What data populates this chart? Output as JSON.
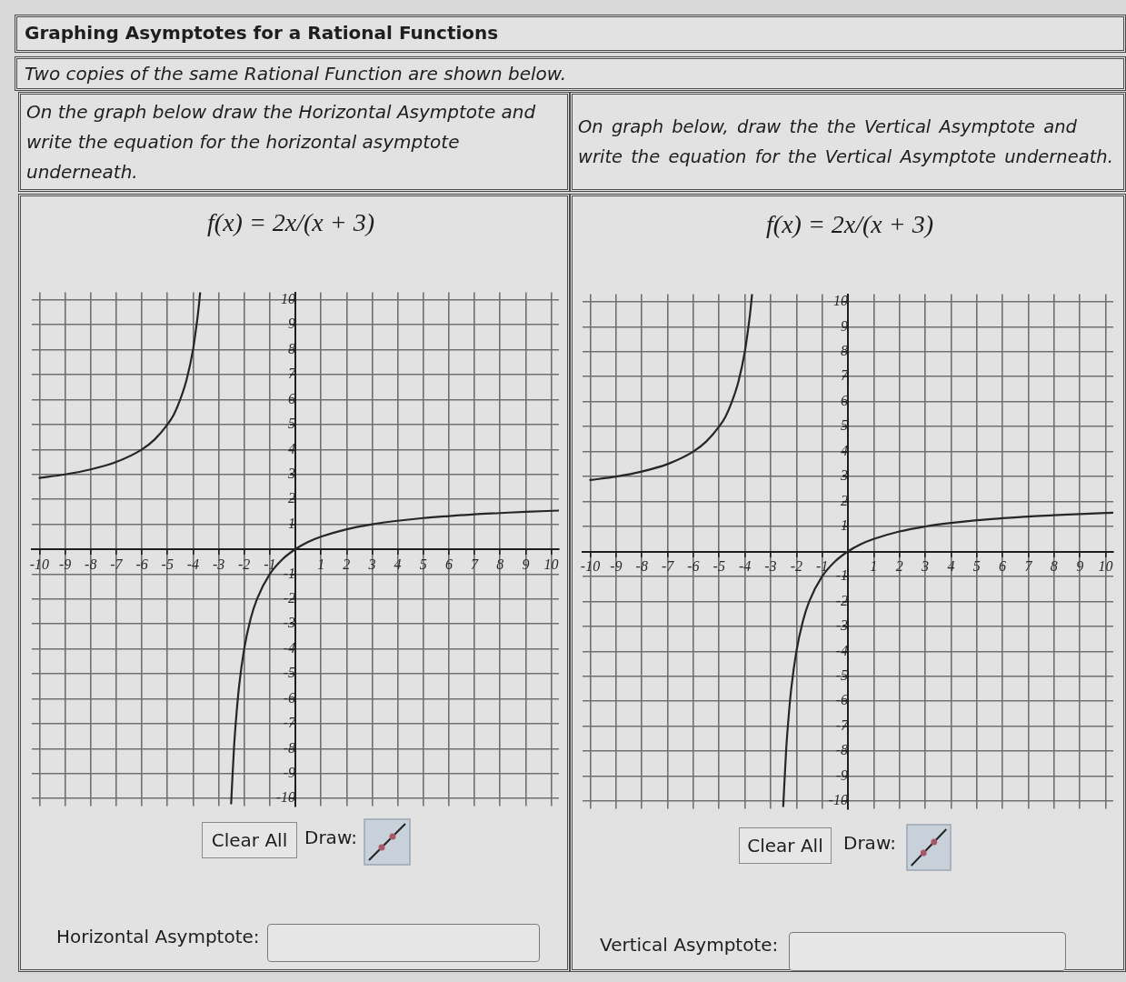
{
  "chart_data": [
    {
      "type": "other",
      "title": "Graphing Asymptotes for a Rational Functions",
      "subtitle": "Two copies of the same Rational Function are shown below."
    },
    {
      "type": "line",
      "title": "On the graph below draw the Horizontal Asymptote and write the equation for the horizontal asymptote underneath.",
      "subtitle": "f(x) = 2x/(x + 3)",
      "series": [
        {
          "color": "#262626",
          "x": [
            -10,
            -9,
            -8,
            -7,
            -6,
            -5.5,
            -5,
            -4.75,
            -4.5,
            -4.25,
            -4,
            -3.9,
            -3.8,
            -3.72
          ],
          "values": [
            2.86,
            3,
            3.2,
            3.5,
            4,
            4.4,
            5,
            5.4,
            6,
            6.8,
            8,
            8.7,
            9.5,
            10.3
          ]
        },
        {
          "color": "#262626",
          "x": [
            -2.51,
            -2.4,
            -2.3,
            -2.2,
            -2,
            -1.75,
            -1.5,
            -1,
            -0.5,
            0,
            0.5,
            1,
            2,
            3,
            4,
            5,
            6,
            7,
            8,
            9,
            10.3
          ],
          "values": [
            -10.2,
            -8,
            -6.6,
            -5.5,
            -4,
            -2.8,
            -2,
            -1,
            -0.4,
            0,
            0.29,
            0.5,
            0.8,
            1,
            1.14,
            1.25,
            1.33,
            1.4,
            1.45,
            1.5,
            1.55
          ]
        }
      ],
      "xlim": [
        -10.3,
        10.3
      ],
      "ylim": [
        -10.3,
        10.3
      ],
      "xticks": [
        -10,
        -9,
        -8,
        -7,
        -6,
        -5,
        -4,
        -3,
        -2,
        -1,
        {
          "value": 0,
          "label": null
        },
        1,
        2,
        3,
        4,
        5,
        6,
        7,
        8,
        9,
        10
      ],
      "yticks": [
        -10,
        -9,
        -8,
        -7,
        -6,
        -5,
        -4,
        -3,
        -2,
        -1,
        {
          "value": 0,
          "label": null
        },
        1,
        2,
        3,
        4,
        5,
        6,
        7,
        8,
        9,
        10
      ],
      "grid": true,
      "marker": "none",
      "line_style": "solid",
      "annotations": [
        "Clear All",
        "Draw:",
        "Horizontal Asymptote:"
      ]
    },
    {
      "type": "line",
      "title": "On graph below, draw the the Vertical Asymptote and write the equation for the Vertical Asymptote underneath.",
      "subtitle": "f(x) = 2x/(x + 3)",
      "series": [
        {
          "color": "#262626",
          "x": [
            -10,
            -9,
            -8,
            -7,
            -6,
            -5.5,
            -5,
            -4.75,
            -4.5,
            -4.25,
            -4,
            -3.9,
            -3.8,
            -3.72
          ],
          "values": [
            2.86,
            3,
            3.2,
            3.5,
            4,
            4.4,
            5,
            5.4,
            6,
            6.8,
            8,
            8.7,
            9.5,
            10.3
          ]
        },
        {
          "color": "#262626",
          "x": [
            -2.51,
            -2.4,
            -2.3,
            -2.2,
            -2,
            -1.75,
            -1.5,
            -1,
            -0.5,
            0,
            0.5,
            1,
            2,
            3,
            4,
            5,
            6,
            7,
            8,
            9,
            10.3
          ],
          "values": [
            -10.2,
            -8,
            -6.6,
            -5.5,
            -4,
            -2.8,
            -2,
            -1,
            -0.4,
            0,
            0.29,
            0.5,
            0.8,
            1,
            1.14,
            1.25,
            1.33,
            1.4,
            1.45,
            1.5,
            1.55
          ]
        }
      ],
      "xlim": [
        -10.3,
        10.3
      ],
      "ylim": [
        -10.3,
        10.3
      ],
      "xticks": [
        -10,
        -9,
        -8,
        -7,
        -6,
        -5,
        -4,
        -3,
        -2,
        -1,
        {
          "value": 0,
          "label": null
        },
        1,
        2,
        3,
        4,
        5,
        6,
        7,
        8,
        9,
        10
      ],
      "yticks": [
        -10,
        -9,
        -8,
        -7,
        -6,
        -5,
        -4,
        -3,
        -2,
        -1,
        {
          "value": 0,
          "label": null
        },
        1,
        2,
        3,
        4,
        5,
        6,
        7,
        8,
        9,
        10
      ],
      "grid": true,
      "marker": "none",
      "line_style": "solid",
      "annotations": [
        "Clear All",
        "Draw:",
        "Vertical Asymptote:"
      ]
    }
  ]
}
